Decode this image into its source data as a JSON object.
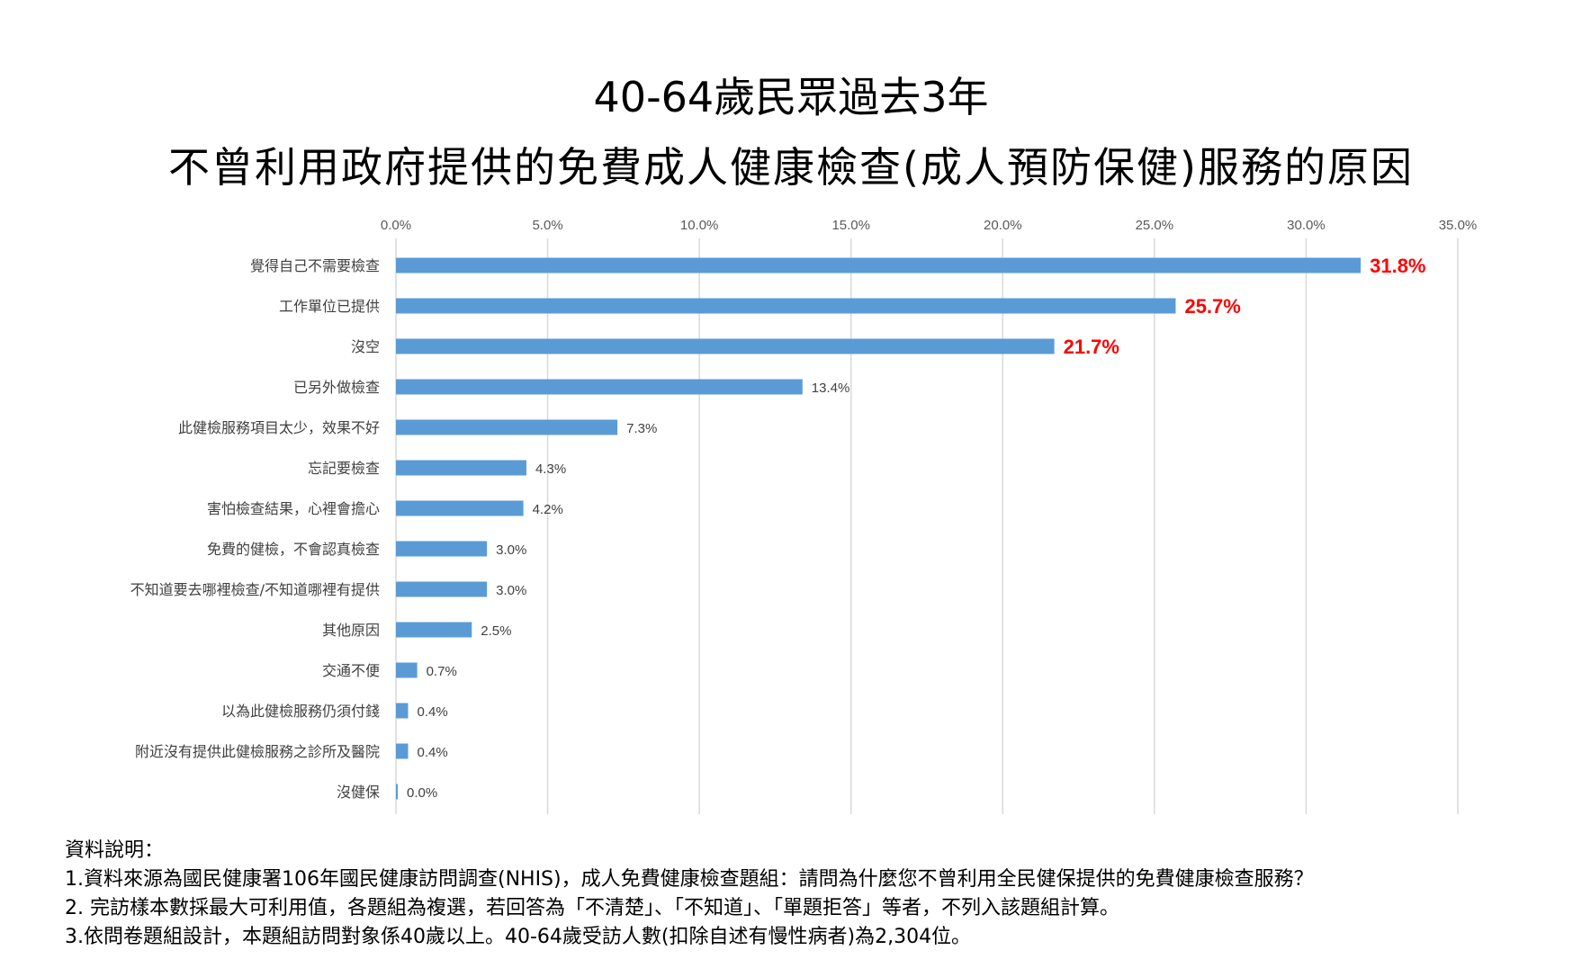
{
  "title": {
    "line1": "40-64歲民眾過去3年",
    "line2": "不曾利用政府提供的免費成人健康檢查(成人預防保健)服務的原因"
  },
  "chart_data": {
    "type": "bar",
    "orientation": "horizontal",
    "title": "40-64歲民眾過去3年 不曾利用政府提供的免費成人健康檢查(成人預防保健)服務的原因",
    "xlim": [
      0,
      35
    ],
    "xticks": [
      "0.0%",
      "5.0%",
      "10.0%",
      "15.0%",
      "20.0%",
      "25.0%",
      "30.0%",
      "35.0%"
    ],
    "xtick_values": [
      0,
      5,
      10,
      15,
      20,
      25,
      30,
      35
    ],
    "grid": true,
    "bar_color": "#5b9bd5",
    "highlight_label_color": "#ff0000",
    "normal_label_color": "#404040",
    "categories": [
      "覺得自己不需要檢查",
      "工作單位已提供",
      "沒空",
      "已另外做檢查",
      "此健檢服務項目太少，效果不好",
      "忘記要檢查",
      "害怕檢查結果，心裡會擔心",
      "免費的健檢，不會認真檢查",
      "不知道要去哪裡檢查/不知道哪裡有提供",
      "其他原因",
      "交通不便",
      "以為此健檢服務仍須付錢",
      "附近沒有提供此健檢服務之診所及醫院",
      "沒健保"
    ],
    "values": [
      31.8,
      25.7,
      21.7,
      13.4,
      7.3,
      4.3,
      4.2,
      3.0,
      3.0,
      2.5,
      0.7,
      0.4,
      0.4,
      0.0
    ],
    "data_labels": [
      "31.8%",
      "25.7%",
      "21.7%",
      "13.4%",
      "7.3%",
      "4.3%",
      "4.2%",
      "3.0%",
      "3.0%",
      "2.5%",
      "0.7%",
      "0.4%",
      "0.4%",
      "0.0%"
    ],
    "highlighted": [
      true,
      true,
      true,
      false,
      false,
      false,
      false,
      false,
      false,
      false,
      false,
      false,
      false,
      false
    ]
  },
  "notes": {
    "heading": "資料說明：",
    "line1": "1.資料來源為國民健康署106年國民健康訪問調查(NHIS)，成人免費健康檢查題組：請問為什麼您不曾利用全民健保提供的免費健康檢查服務？",
    "line2": "2. 完訪樣本數採最大可利用值，各題組為複選，若回答為「不清楚」、「不知道」、「單題拒答」等者，不列入該題組計算。",
    "line3": "3.依問卷題組設計，本題組訪問對象係40歲以上。40-64歲受訪人數(扣除自述有慢性病者)為2,304位。"
  }
}
